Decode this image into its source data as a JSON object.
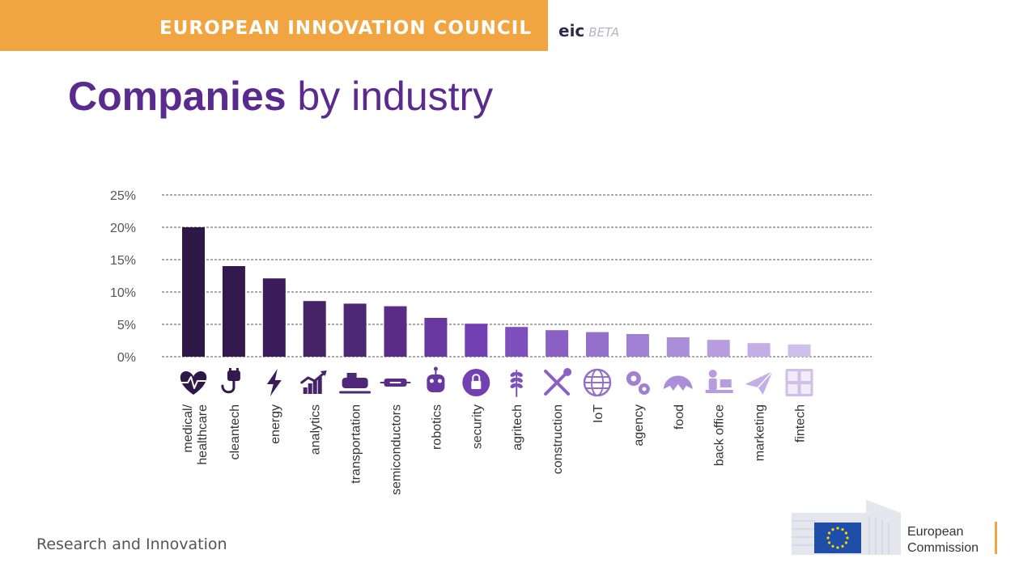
{
  "header": {
    "banner_title": "EUROPEAN INNOVATION COUNCIL",
    "eic_logo": "eic",
    "eic_beta": "BETA",
    "banner_color": "#f0a541"
  },
  "slide": {
    "title_bold": "Companies",
    "title_rest": " by industry",
    "title_color": "#5a2a8e"
  },
  "chart_data": {
    "type": "bar",
    "title": "",
    "xlabel": "",
    "ylabel": "",
    "ylim": [
      0,
      25
    ],
    "yticks": [
      "0%",
      "5%",
      "10%",
      "15%",
      "20%",
      "25%"
    ],
    "grid": true,
    "grid_style": "dashed",
    "legend": "none",
    "categories": [
      "medical/ healthcare",
      "cleantech",
      "energy",
      "analytics",
      "transportation",
      "semiconductors",
      "robotics",
      "security",
      "agritech",
      "construction",
      "IoT",
      "agency",
      "food",
      "back office",
      "marketing",
      "fintech"
    ],
    "values": [
      20.0,
      14.0,
      12.1,
      8.6,
      8.2,
      7.8,
      6.0,
      5.1,
      4.6,
      4.1,
      3.8,
      3.5,
      3.0,
      2.6,
      2.1,
      1.9
    ],
    "colors": [
      "#2e1848",
      "#34194f",
      "#3b1b5a",
      "#462367",
      "#4f2777",
      "#5b2c86",
      "#6738a0",
      "#7240b3",
      "#7e50be",
      "#8a60c5",
      "#9570cb",
      "#a080d2",
      "#ab8ed8",
      "#b79ddf",
      "#c3aee5",
      "#cfc0eb"
    ],
    "icons": [
      "heart-pulse-icon",
      "plug-icon",
      "lightning-icon",
      "chart-up-icon",
      "train-icon",
      "chip-icon",
      "robot-icon",
      "lock-icon",
      "wheat-icon",
      "wrench-screwdriver-icon",
      "globe-icon",
      "gears-icon",
      "croissant-icon",
      "desk-worker-icon",
      "paper-plane-icon",
      "calculator-icon"
    ]
  },
  "footer": {
    "left_text": "Research and Innovation",
    "ec_line1": "European",
    "ec_line2": "Commission",
    "eu_flag_color": "#1f4ea8",
    "star_color": "#ffd500"
  }
}
